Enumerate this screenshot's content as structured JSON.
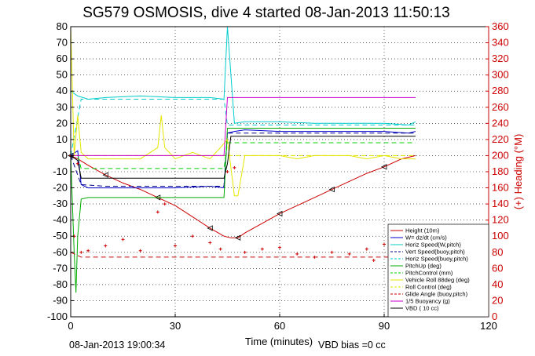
{
  "chart_data": {
    "type": "line",
    "title": "SG579 OSMOSIS, dive 4 started 08-Jan-2013 11:50:13",
    "xlabel": "Time (minutes)",
    "ylabel": "",
    "ylabel_right": "(+) Heading (°M)",
    "xlim": [
      0,
      120
    ],
    "ylim": [
      -100,
      80
    ],
    "ylim_right": [
      0,
      360
    ],
    "x_ticks": [
      0,
      30,
      60,
      90,
      120
    ],
    "y_ticks": [
      80,
      70,
      60,
      50,
      40,
      30,
      20,
      10,
      0,
      -10,
      -20,
      -30,
      -40,
      -50,
      -60,
      -70,
      -80,
      -90,
      -100
    ],
    "y_ticks_right": [
      360,
      340,
      320,
      300,
      280,
      260,
      240,
      220,
      200,
      180,
      160,
      140,
      120,
      100,
      80,
      60,
      40,
      20,
      0
    ],
    "grid": true,
    "legend_position": "bottom-right",
    "footer_left": "08-Jan-2013 19:00:34",
    "footer_right": "VBD bias =0 cc",
    "colors": {
      "axis_left": "#000000",
      "axis_right": "#cc0000",
      "height": "#cc0000",
      "w_dzdt": "#0000cc",
      "horiz_speed": "#00cccc",
      "pitch": "#00aa00",
      "vehicle_roll": "#e6e600",
      "buoyancy": "#cc00cc",
      "vbd": "#000000"
    },
    "series": [
      {
        "name": "Height (10m)",
        "color": "#cc0000",
        "style": "solid",
        "marker": "triangle",
        "x": [
          0,
          2,
          5,
          10,
          15,
          20,
          25,
          30,
          35,
          40,
          44,
          46,
          48,
          50,
          55,
          60,
          65,
          70,
          75,
          80,
          85,
          90,
          95,
          99
        ],
        "y": [
          0,
          -2,
          -6,
          -12,
          -17,
          -21,
          -26,
          -31,
          -38,
          -45,
          -50,
          -51,
          -51,
          -48,
          -42,
          -36,
          -31,
          -26,
          -21,
          -16,
          -11,
          -7,
          -2,
          0
        ]
      },
      {
        "name": "W= dz/dt (cm/s)",
        "color": "#0000cc",
        "style": "solid",
        "x": [
          0,
          2,
          3,
          5,
          10,
          20,
          30,
          40,
          44,
          45,
          47,
          50,
          60,
          70,
          80,
          90,
          97,
          99
        ],
        "y": [
          0,
          3,
          -18,
          -20,
          -20,
          -20,
          -20,
          -19,
          -20,
          14,
          15,
          16,
          15,
          15,
          15,
          15,
          14,
          15
        ]
      },
      {
        "name": "Horiz Speed(W,pitch)",
        "color": "#00cccc",
        "style": "solid",
        "x": [
          0,
          2,
          5,
          10,
          20,
          30,
          40,
          44,
          45,
          47,
          50,
          60,
          70,
          80,
          90,
          97,
          99
        ],
        "y": [
          40,
          37,
          35,
          36,
          37,
          36,
          36,
          35,
          80,
          20,
          21,
          21,
          20,
          20,
          20,
          19,
          21
        ]
      },
      {
        "name": "Vert Speed(buoy,pitch)",
        "color": "#000088",
        "style": "dashed",
        "x": [
          0,
          3,
          10,
          20,
          30,
          44,
          45,
          50,
          60,
          70,
          80,
          90,
          99
        ],
        "y": [
          0,
          -18,
          -19,
          -19,
          -19,
          -19,
          14,
          14,
          14,
          14,
          14,
          14,
          14
        ]
      },
      {
        "name": "Horiz Speed(buoy,pitch)",
        "color": "#00cccc",
        "style": "dashed",
        "x": [
          0,
          3,
          10,
          20,
          30,
          44,
          45,
          50,
          60,
          70,
          80,
          90,
          99
        ],
        "y": [
          0,
          35,
          35,
          35,
          35,
          35,
          19,
          19,
          19,
          19,
          19,
          19,
          19
        ]
      },
      {
        "name": "PitchUp (deg)",
        "color": "#00aa00",
        "style": "solid",
        "x": [
          0,
          1,
          1.5,
          2,
          3,
          5,
          10,
          20,
          30,
          40,
          44,
          45,
          47,
          50,
          60,
          70,
          80,
          90,
          99
        ],
        "y": [
          0,
          -60,
          -85,
          -50,
          -27,
          -26,
          -26,
          -26,
          -26,
          -26,
          -26,
          17,
          17,
          17,
          17,
          17,
          17,
          17,
          17
        ]
      },
      {
        "name": "PitchControl (mm)",
        "color": "#00cc00",
        "style": "dashed",
        "x": [
          0,
          2,
          3,
          10,
          20,
          30,
          40,
          44,
          45,
          50,
          60,
          70,
          80,
          90,
          99
        ],
        "y": [
          0,
          0,
          -8,
          -8,
          -8,
          -8,
          -8,
          -8,
          8,
          8,
          8,
          8,
          8,
          8,
          8
        ]
      },
      {
        "name": "Vehicle Roll 88deg (deg)",
        "color": "#e6e600",
        "style": "solid",
        "x": [
          0,
          0.5,
          1,
          2,
          3,
          5,
          10,
          20,
          25,
          26,
          27,
          30,
          35,
          40,
          43,
          45,
          47,
          48,
          50,
          55,
          60,
          65,
          70,
          75,
          80,
          85,
          90,
          95,
          99
        ],
        "y": [
          80,
          40,
          0,
          25,
          2,
          -2,
          -2,
          -2,
          5,
          25,
          5,
          -2,
          2,
          -2,
          5,
          10,
          -25,
          -25,
          0,
          0,
          0,
          -2,
          0,
          0,
          0,
          -2,
          0,
          -2,
          -2
        ]
      },
      {
        "name": "Roll Control (deg)",
        "color": "#e6e600",
        "style": "dashed",
        "x": [
          0,
          10,
          20,
          30,
          40,
          50,
          60,
          70,
          80,
          90,
          99
        ],
        "y": [
          0,
          0,
          0,
          0,
          0,
          0,
          0,
          0,
          0,
          0,
          0
        ]
      },
      {
        "name": "Glide Angle (buoy,pitch)",
        "color": "#cc0000",
        "style": "dashed",
        "x": [
          0,
          3,
          10,
          20,
          30,
          40,
          45,
          50,
          60,
          70,
          80,
          90,
          99
        ],
        "y": [
          -60,
          -63,
          -63,
          -63,
          -63,
          -63,
          -63,
          -63,
          -63,
          -63,
          -63,
          -63,
          -63
        ]
      },
      {
        "name": "1/5 Buoyancy (g)",
        "color": "#cc00cc",
        "style": "solid",
        "x": [
          0,
          2,
          10,
          20,
          30,
          40,
          44,
          45,
          47,
          50,
          60,
          70,
          80,
          90,
          99
        ],
        "y": [
          0,
          0,
          0,
          0,
          0,
          0,
          0,
          36,
          36,
          36,
          36,
          36,
          36,
          36,
          36
        ]
      },
      {
        "name": "VBD ( 10 cc)",
        "color": "#000000",
        "style": "solid",
        "x": [
          0,
          2,
          3,
          10,
          20,
          30,
          40,
          44,
          45,
          46,
          50,
          60,
          70,
          80,
          90,
          99
        ],
        "y": [
          0,
          -3,
          -14,
          -14,
          -14,
          -14,
          -14,
          -14,
          -5,
          12,
          12,
          12,
          12,
          12,
          12,
          12
        ]
      },
      {
        "name": "Heading",
        "axis": "right",
        "color": "#cc0000",
        "style": "markers",
        "x": [
          0,
          1,
          2,
          3,
          5,
          10,
          15,
          20,
          25,
          27,
          30,
          35,
          40,
          43,
          45,
          47,
          50,
          55,
          60,
          65,
          70,
          75,
          80,
          85,
          87,
          90,
          95,
          99
        ],
        "y": [
          200,
          100,
          190,
          80,
          82,
          88,
          96,
          82,
          130,
          140,
          88,
          100,
          92,
          84,
          180,
          185,
          80,
          84,
          86,
          78,
          74,
          80,
          78,
          84,
          70,
          90,
          84,
          86
        ]
      }
    ]
  }
}
